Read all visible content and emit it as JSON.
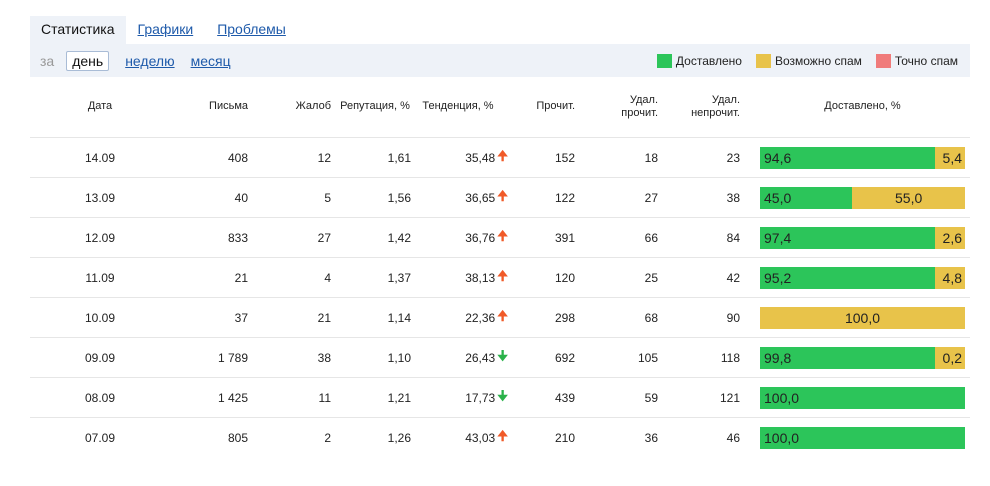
{
  "tabs": [
    {
      "label": "Статистика"
    },
    {
      "label": "Графики"
    },
    {
      "label": "Проблемы"
    }
  ],
  "period": {
    "prefix": "за",
    "options": [
      {
        "label": "день",
        "active": true
      },
      {
        "label": "неделю",
        "active": false
      },
      {
        "label": "месяц",
        "active": false
      }
    ]
  },
  "legend": [
    {
      "label": "Доставлено",
      "color": "#2cc55a"
    },
    {
      "label": "Возможно спам",
      "color": "#e8c34a"
    },
    {
      "label": "Точно спам",
      "color": "#f07b7b"
    }
  ],
  "table": {
    "headers": {
      "date": "Дата",
      "letters": "Письма",
      "complaints": "Жалоб",
      "reputation": "Репутация, %",
      "trend": "Тенденция, %",
      "read": "Прочит.",
      "deleted_read_1": "Удал.",
      "deleted_read_2": "прочит.",
      "deleted_unread_1": "Удал.",
      "deleted_unread_2": "непрочит.",
      "delivered": "Доставлено, %"
    },
    "rows": [
      {
        "date": "14.09",
        "letters": "408",
        "complaints": "12",
        "reputation": "1,61",
        "trend": "35,48",
        "trend_dir": "up",
        "read": "152",
        "deleted_read": "18",
        "deleted_unread": "23",
        "delivered": "94,6",
        "maybe_spam": "5,4",
        "delivered_pct": 94.6,
        "maybe_spam_pct": 5.4
      },
      {
        "date": "13.09",
        "letters": "40",
        "complaints": "5",
        "reputation": "1,56",
        "trend": "36,65",
        "trend_dir": "up",
        "read": "122",
        "deleted_read": "27",
        "deleted_unread": "38",
        "delivered": "45,0",
        "maybe_spam": "55,0",
        "delivered_pct": 45.0,
        "maybe_spam_pct": 55.0
      },
      {
        "date": "12.09",
        "letters": "833",
        "complaints": "27",
        "reputation": "1,42",
        "trend": "36,76",
        "trend_dir": "up",
        "read": "391",
        "deleted_read": "66",
        "deleted_unread": "84",
        "delivered": "97,4",
        "maybe_spam": "2,6",
        "delivered_pct": 97.4,
        "maybe_spam_pct": 2.6
      },
      {
        "date": "11.09",
        "letters": "21",
        "complaints": "4",
        "reputation": "1,37",
        "trend": "38,13",
        "trend_dir": "up",
        "read": "120",
        "deleted_read": "25",
        "deleted_unread": "42",
        "delivered": "95,2",
        "maybe_spam": "4,8",
        "delivered_pct": 95.2,
        "maybe_spam_pct": 4.8
      },
      {
        "date": "10.09",
        "letters": "37",
        "complaints": "21",
        "reputation": "1,14",
        "trend": "22,36",
        "trend_dir": "up",
        "read": "298",
        "deleted_read": "68",
        "deleted_unread": "90",
        "delivered": "",
        "maybe_spam": "100,0",
        "delivered_pct": 0,
        "maybe_spam_pct": 100.0
      },
      {
        "date": "09.09",
        "letters": "1 789",
        "complaints": "38",
        "reputation": "1,10",
        "trend": "26,43",
        "trend_dir": "down",
        "read": "692",
        "deleted_read": "105",
        "deleted_unread": "118",
        "delivered": "99,8",
        "maybe_spam": "0,2",
        "delivered_pct": 99.8,
        "maybe_spam_pct": 0.2
      },
      {
        "date": "08.09",
        "letters": "1 425",
        "complaints": "11",
        "reputation": "1,21",
        "trend": "17,73",
        "trend_dir": "down",
        "read": "439",
        "deleted_read": "59",
        "deleted_unread": "121",
        "delivered": "100,0",
        "maybe_spam": "",
        "delivered_pct": 100.0,
        "maybe_spam_pct": 0
      },
      {
        "date": "07.09",
        "letters": "805",
        "complaints": "2",
        "reputation": "1,26",
        "trend": "43,03",
        "trend_dir": "up",
        "read": "210",
        "deleted_read": "36",
        "deleted_unread": "46",
        "delivered": "100,0",
        "maybe_spam": "",
        "delivered_pct": 100.0,
        "maybe_spam_pct": 0
      }
    ]
  }
}
